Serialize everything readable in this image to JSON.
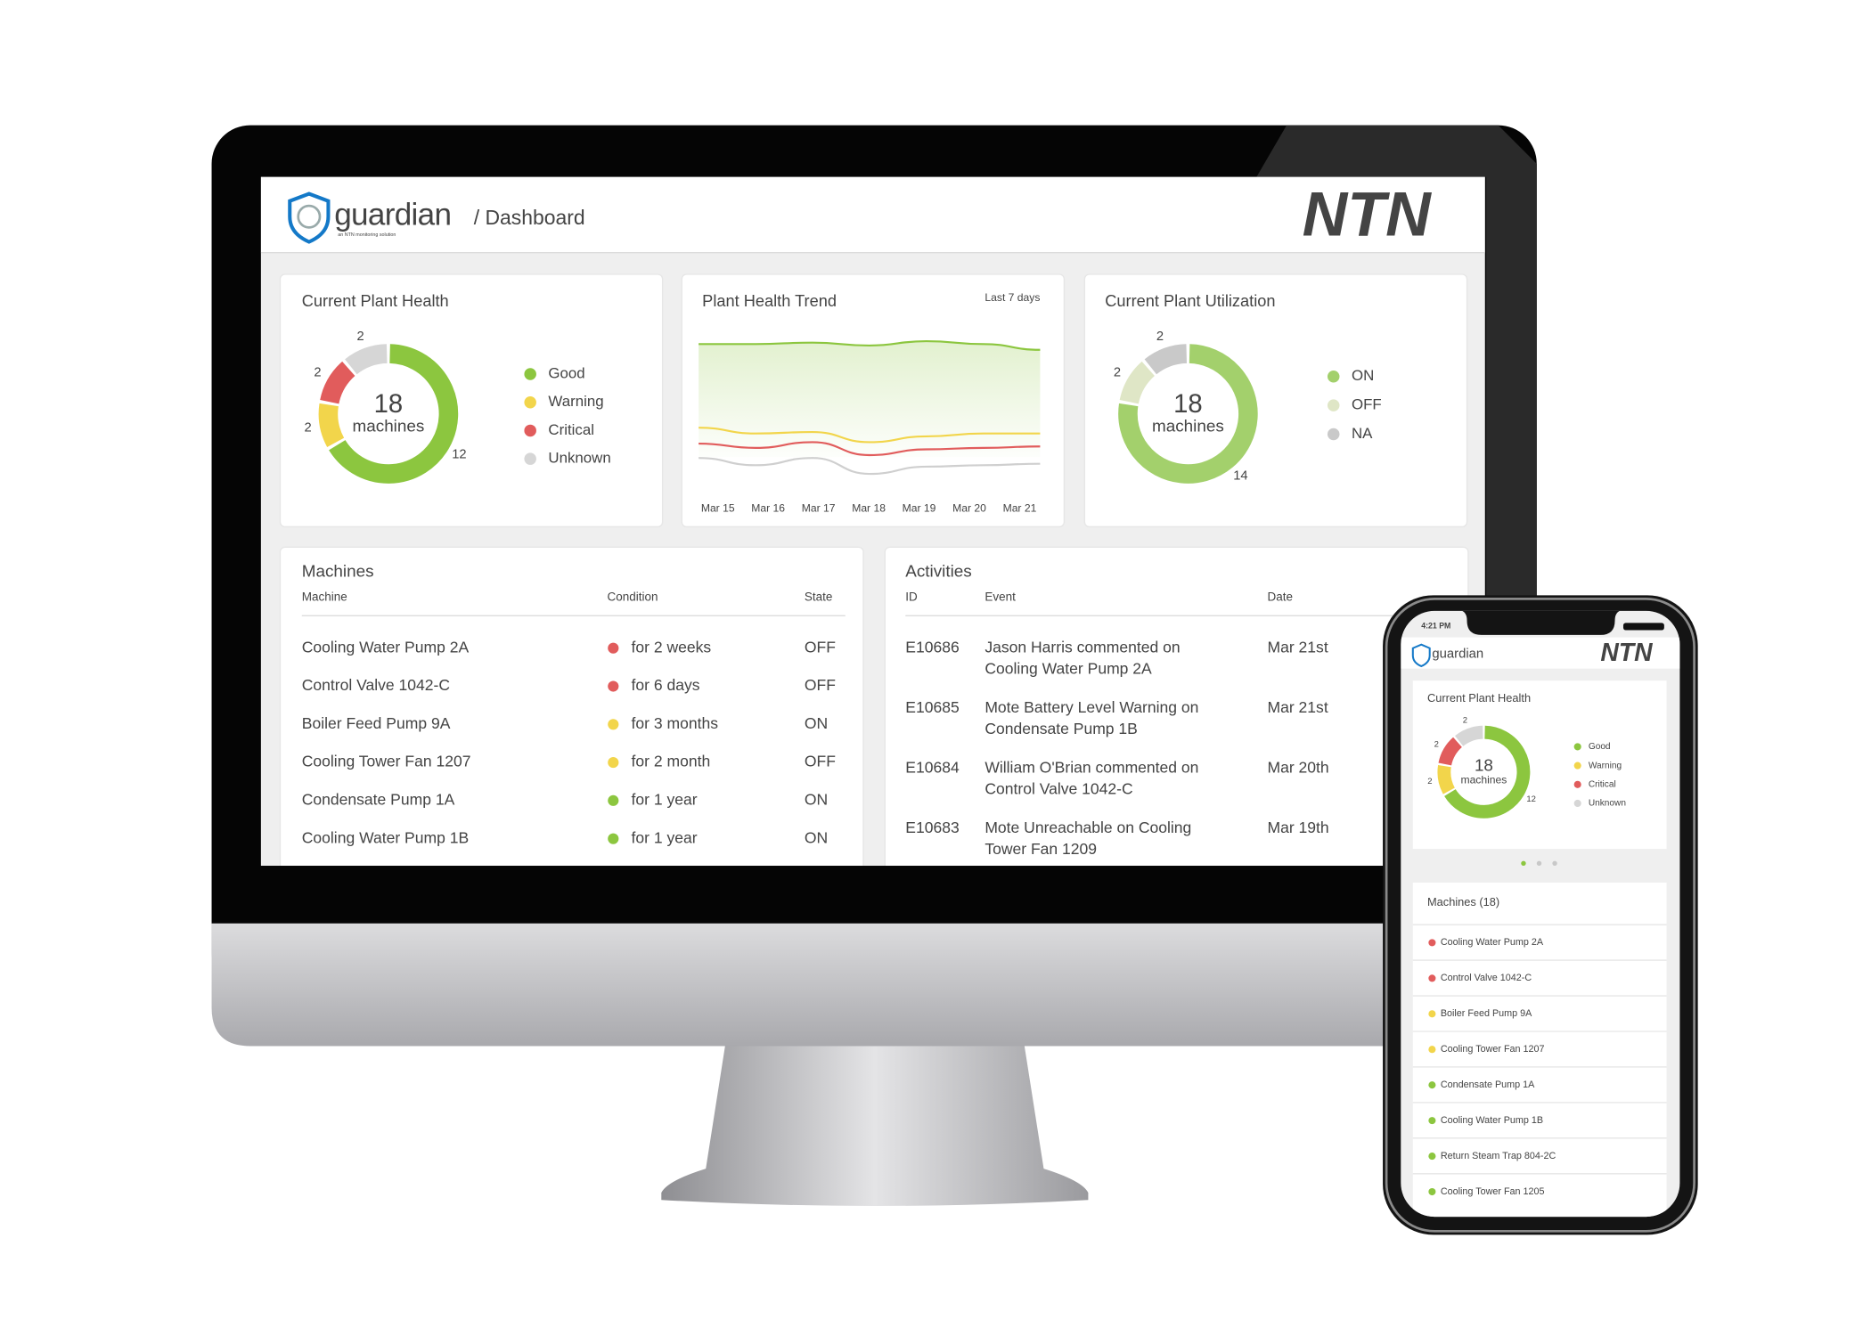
{
  "desktop": {
    "header": {
      "brand": "guardian",
      "tagline": "an NTN monitoring solution",
      "breadcrumb": "/ Dashboard",
      "logo": "NTN"
    },
    "plant_health": {
      "type": "donut",
      "title": "Current Plant Health",
      "center_value": 18,
      "center_label": "machines",
      "series": [
        {
          "name": "Good",
          "color": "#8cc63f",
          "value": 12
        },
        {
          "name": "Warning",
          "color": "#f2d54b",
          "value": 2
        },
        {
          "name": "Critical",
          "color": "#e15c5c",
          "value": 2
        },
        {
          "name": "Unknown",
          "color": "#d6d6d6",
          "value": 2
        }
      ]
    },
    "trend": {
      "type": "line",
      "title": "Plant Health Trend",
      "subtitle": "Last 7 days",
      "x": [
        "Mar 15",
        "Mar 16",
        "Mar 17",
        "Mar 18",
        "Mar 19",
        "Mar 20",
        "Mar 21"
      ],
      "ylim": [
        0,
        100
      ],
      "series": [
        {
          "color": "#8cc63f",
          "values": [
            95,
            95,
            96,
            94,
            97,
            95,
            91
          ]
        },
        {
          "color": "#f2d54b",
          "values": [
            37,
            33,
            34,
            27,
            31,
            33,
            33
          ]
        },
        {
          "color": "#e15c5c",
          "values": [
            26,
            23,
            27,
            18,
            22,
            23,
            24
          ]
        },
        {
          "color": "#cfcfcf",
          "values": [
            16,
            11,
            16,
            5,
            10,
            11,
            12
          ]
        }
      ]
    },
    "utilization": {
      "type": "donut",
      "title": "Current Plant Utilization",
      "center_value": 18,
      "center_label": "machines",
      "series": [
        {
          "name": "ON",
          "color": "#a3d06c",
          "value": 14
        },
        {
          "name": "OFF",
          "color": "#dfe6c6",
          "value": 2
        },
        {
          "name": "NA",
          "color": "#c9c9c9",
          "value": 2
        }
      ]
    },
    "machines": {
      "title": "Machines",
      "columns": [
        "Machine",
        "Condition",
        "State"
      ],
      "rows": [
        {
          "machine": "Cooling Water Pump 2A",
          "color": "#e15c5c",
          "condition": "for 2 weeks",
          "state": "OFF"
        },
        {
          "machine": "Control Valve 1042-C",
          "color": "#e15c5c",
          "condition": "for 6 days",
          "state": "OFF"
        },
        {
          "machine": "Boiler Feed Pump 9A",
          "color": "#f2d54b",
          "condition": "for 3 months",
          "state": "ON"
        },
        {
          "machine": "Cooling Tower Fan 1207",
          "color": "#f2d54b",
          "condition": "for 2 month",
          "state": "OFF"
        },
        {
          "machine": "Condensate Pump 1A",
          "color": "#8cc63f",
          "condition": "for 1 year",
          "state": "ON"
        },
        {
          "machine": "Cooling Water Pump 1B",
          "color": "#8cc63f",
          "condition": "for 1 year",
          "state": "ON"
        }
      ]
    },
    "activities": {
      "title": "Activities",
      "columns": [
        "ID",
        "Event",
        "Date"
      ],
      "rows": [
        {
          "id": "E10686",
          "event": [
            "Jason Harris commented on",
            "Cooling Water Pump 2A"
          ],
          "date": "Mar 21st"
        },
        {
          "id": "E10685",
          "event": [
            "Mote Battery Level Warning on",
            "Condensate Pump 1B"
          ],
          "date": "Mar 21st"
        },
        {
          "id": "E10684",
          "event": [
            "William O'Brian commented on",
            "Control Valve 1042-C"
          ],
          "date": "Mar 20th"
        },
        {
          "id": "E10683",
          "event": [
            "Mote Unreachable on Cooling",
            "Tower Fan 1209"
          ],
          "date": "Mar 19th"
        }
      ]
    }
  },
  "mobile": {
    "status_time": "4:21 PM",
    "header": {
      "brand": "guardian",
      "logo": "NTN"
    },
    "plant_health": {
      "type": "donut",
      "title": "Current Plant Health",
      "center_value": 18,
      "center_label": "machines",
      "series": [
        {
          "name": "Good",
          "color": "#8cc63f",
          "value": 12
        },
        {
          "name": "Warning",
          "color": "#f2d54b",
          "value": 2
        },
        {
          "name": "Critical",
          "color": "#e15c5c",
          "value": 2
        },
        {
          "name": "Unknown",
          "color": "#d6d6d6",
          "value": 2
        }
      ]
    },
    "machines": {
      "title": "Machines (18)",
      "rows": [
        {
          "name": "Cooling Water Pump 2A",
          "color": "#e15c5c"
        },
        {
          "name": "Control Valve 1042-C",
          "color": "#e15c5c"
        },
        {
          "name": "Boiler Feed Pump 9A",
          "color": "#f2d54b"
        },
        {
          "name": "Cooling Tower Fan 1207",
          "color": "#f2d54b"
        },
        {
          "name": "Condensate Pump 1A",
          "color": "#8cc63f"
        },
        {
          "name": "Cooling Water Pump 1B",
          "color": "#8cc63f"
        },
        {
          "name": "Return Steam Trap 804-2C",
          "color": "#8cc63f"
        },
        {
          "name": "Cooling Tower Fan 1205",
          "color": "#8cc63f"
        }
      ]
    }
  }
}
